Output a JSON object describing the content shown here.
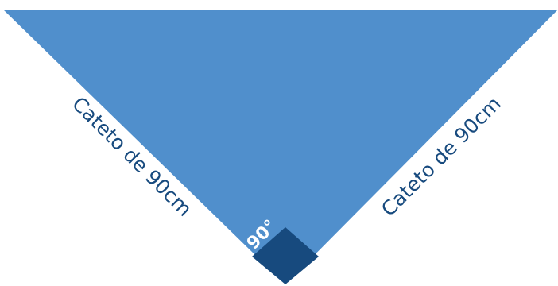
{
  "diagram": {
    "left_leg_label": "Cateto de 90cm",
    "right_leg_label": "Cateto de 90cm",
    "angle_label": "90°"
  },
  "colors": {
    "triangle_fill": "#508fcc",
    "right_angle_marker": "#174a7e",
    "leg_label_text": "#174a7e",
    "angle_label_text": "#ffffff"
  }
}
